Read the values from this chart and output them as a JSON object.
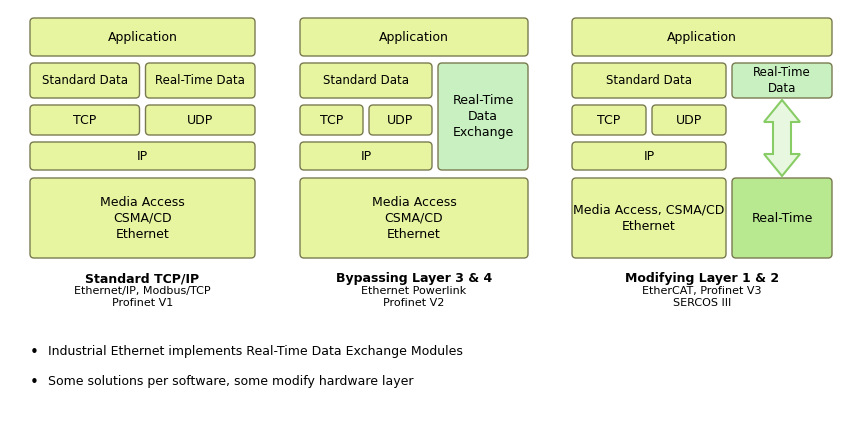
{
  "bg_color": "#ffffff",
  "light_yellow": "#e8f5a0",
  "light_green_box": "#c8f0c0",
  "light_green_rt": "#b8e890",
  "edge_color": "#888866",
  "text_color": "#000000",
  "bullet1": "Industrial Ethernet implements Real-Time Data Exchange Modules",
  "bullet2": "Some solutions per software, some modify hardware layer",
  "col1_label1": "Standard TCP/IP",
  "col1_label2": "Ethernet/IP, Modbus/TCP\nProfinet V1",
  "col2_label1": "Bypassing Layer 3 & 4",
  "col2_label2": "Ethernet Powerlink\nProfinet V2",
  "col3_label1": "Modifying Layer 1 & 2",
  "col3_label2": "EtherCAT, Profinet V3\nSERCOS III"
}
